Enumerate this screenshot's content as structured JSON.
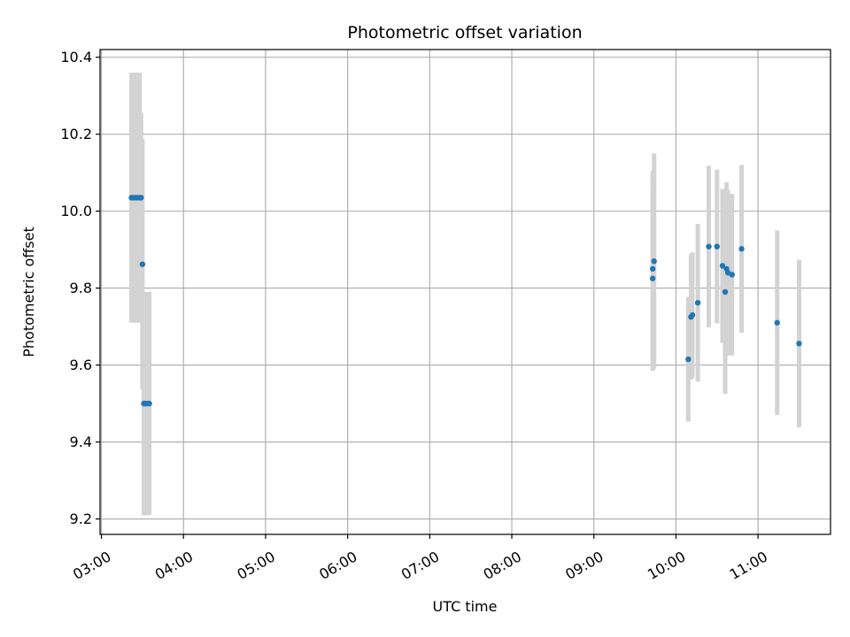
{
  "chart_data": {
    "type": "scatter",
    "title": "Photometric offset variation",
    "xlabel": "UTC time",
    "ylabel": "Photometric offset",
    "x_unit": "UTC time (HH:MM)",
    "xlim": [
      "02:59",
      "11:53"
    ],
    "ylim": [
      9.16,
      10.42
    ],
    "x_ticks": [
      "03:00",
      "04:00",
      "05:00",
      "06:00",
      "07:00",
      "08:00",
      "09:00",
      "10:00",
      "11:00"
    ],
    "y_ticks": [
      9.2,
      9.4,
      9.6,
      9.8,
      10.0,
      10.2,
      10.4
    ],
    "grid": true,
    "legend": "none",
    "colors": {
      "points": "#1f77b4",
      "errorbars": "#d3d3d3",
      "grid": "#b0b0b0"
    },
    "series": [
      {
        "points": [
          {
            "t": "03:22",
            "y": 10.035,
            "err": 0.325
          },
          {
            "t": "03:24",
            "y": 10.035,
            "err": 0.325
          },
          {
            "t": "03:26",
            "y": 10.035,
            "err": 0.325
          },
          {
            "t": "03:28",
            "y": 10.035,
            "err": 0.325
          },
          {
            "t": "03:29",
            "y": 10.035,
            "err": 0.22
          },
          {
            "t": "03:30",
            "y": 9.862,
            "err": 0.325
          },
          {
            "t": "03:31",
            "y": 9.5,
            "err": 0.29
          },
          {
            "t": "03:32",
            "y": 9.5,
            "err": 0.29
          },
          {
            "t": "03:33",
            "y": 9.5,
            "err": 0.29
          },
          {
            "t": "03:35",
            "y": 9.5,
            "err": 0.29
          },
          {
            "t": "09:43",
            "y": 9.825,
            "err": 0.24
          },
          {
            "t": "09:43",
            "y": 9.85,
            "err": 0.255
          },
          {
            "t": "09:44",
            "y": 9.87,
            "err": 0.28
          },
          {
            "t": "10:09",
            "y": 9.615,
            "err": 0.162
          },
          {
            "t": "10:11",
            "y": 9.725,
            "err": 0.163
          },
          {
            "t": "10:12",
            "y": 9.73,
            "err": 0.163
          },
          {
            "t": "10:16",
            "y": 9.762,
            "err": 0.205
          },
          {
            "t": "10:24",
            "y": 9.908,
            "err": 0.21
          },
          {
            "t": "10:30",
            "y": 9.908,
            "err": 0.2
          },
          {
            "t": "10:34",
            "y": 9.858,
            "err": 0.2
          },
          {
            "t": "10:36",
            "y": 9.79,
            "err": 0.265
          },
          {
            "t": "10:37",
            "y": 9.85,
            "err": 0.225
          },
          {
            "t": "10:38",
            "y": 9.84,
            "err": 0.215
          },
          {
            "t": "10:41",
            "y": 9.835,
            "err": 0.21
          },
          {
            "t": "10:48",
            "y": 9.902,
            "err": 0.218
          },
          {
            "t": "11:14",
            "y": 9.71,
            "err": 0.24
          },
          {
            "t": "11:30",
            "y": 9.656,
            "err": 0.218
          }
        ]
      }
    ]
  }
}
